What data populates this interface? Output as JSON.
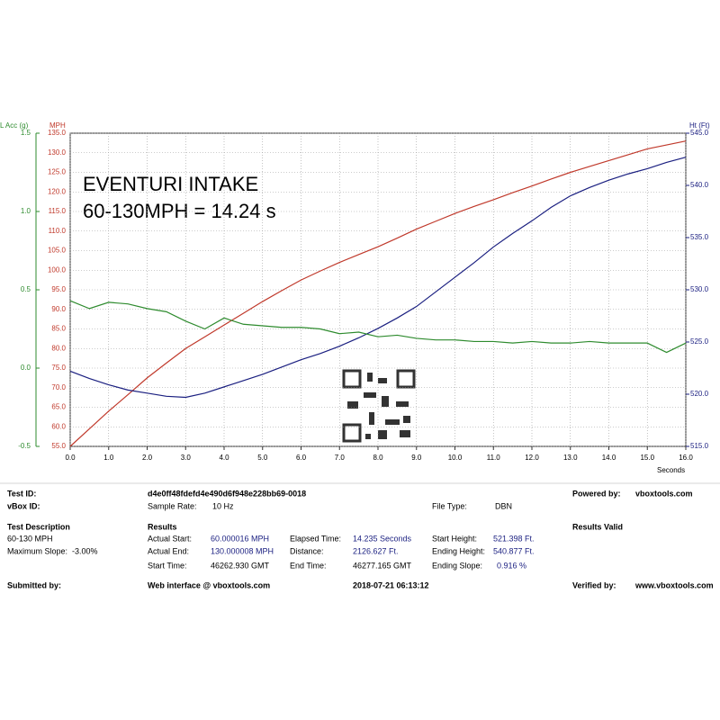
{
  "chart_data": {
    "type": "line",
    "annotations": [
      "EVENTURI INTAKE",
      "60-130MPH = 14.24 s"
    ],
    "xlabel": "Seconds",
    "ylabel": "MPH",
    "y2label": "Ht (Ft)",
    "y3label": "L Acc (g)",
    "x": [
      0,
      0.5,
      1,
      1.5,
      2,
      2.5,
      3,
      3.5,
      4,
      4.5,
      5,
      5.5,
      6,
      6.5,
      7,
      7.5,
      8,
      8.5,
      9,
      9.5,
      10,
      10.5,
      11,
      11.5,
      12,
      12.5,
      13,
      13.5,
      14,
      14.5,
      15,
      15.5,
      16
    ],
    "xlim": [
      0,
      16
    ],
    "xticks": [
      {
        "value": 0,
        "label": "0.0"
      },
      {
        "value": 1,
        "label": "1.0"
      },
      {
        "value": 2,
        "label": "2.0"
      },
      {
        "value": 3,
        "label": "3.0"
      },
      {
        "value": 4,
        "label": "4.0"
      },
      {
        "value": 5,
        "label": "5.0"
      },
      {
        "value": 6,
        "label": "6.0"
      },
      {
        "value": 7,
        "label": "7.0"
      },
      {
        "value": 8,
        "label": "8.0"
      },
      {
        "value": 9,
        "label": "9.0"
      },
      {
        "value": 10,
        "label": "10.0"
      },
      {
        "value": 11,
        "label": "11.0"
      },
      {
        "value": 12,
        "label": "12.0"
      },
      {
        "value": 13,
        "label": "13.0"
      },
      {
        "value": 14,
        "label": "14.0"
      },
      {
        "value": 15,
        "label": "15.0"
      },
      {
        "value": 16,
        "label": "16.0"
      }
    ],
    "ylim": [
      55,
      135
    ],
    "yticks": [
      {
        "value": 55,
        "label": "55.0"
      },
      {
        "value": 60,
        "label": "60.0"
      },
      {
        "value": 65,
        "label": "65.0"
      },
      {
        "value": 70,
        "label": "70.0"
      },
      {
        "value": 75,
        "label": "75.0"
      },
      {
        "value": 80,
        "label": "80.0"
      },
      {
        "value": 85,
        "label": "85.0"
      },
      {
        "value": 90,
        "label": "90.0"
      },
      {
        "value": 95,
        "label": "95.0"
      },
      {
        "value": 100,
        "label": "100.0"
      },
      {
        "value": 105,
        "label": "105.0"
      },
      {
        "value": 110,
        "label": "110.0"
      },
      {
        "value": 115,
        "label": "115.0"
      },
      {
        "value": 120,
        "label": "120.0"
      },
      {
        "value": 125,
        "label": "125.0"
      },
      {
        "value": 130,
        "label": "130.0"
      },
      {
        "value": 135,
        "label": "135.0"
      }
    ],
    "y2lim": [
      515,
      545
    ],
    "y2ticks": [
      {
        "value": 515,
        "label": "515.0"
      },
      {
        "value": 520,
        "label": "520.0"
      },
      {
        "value": 525,
        "label": "525.0"
      },
      {
        "value": 530,
        "label": "530.0"
      },
      {
        "value": 535,
        "label": "535.0"
      },
      {
        "value": 540,
        "label": "540.0"
      },
      {
        "value": 545,
        "label": "545.0"
      }
    ],
    "y3lim": [
      -0.5,
      1.5
    ],
    "y3ticks": [
      -0.5,
      {
        "value": 0,
        "label": "0.0"
      },
      0.5,
      {
        "value": 1,
        "label": "1.0"
      },
      1.5
    ],
    "grid": true,
    "series": [
      {
        "name": "MPH",
        "color": "#c0392b",
        "axis": "y",
        "values": [
          55,
          59.5,
          64,
          68.2,
          72.5,
          76.3,
          80,
          83,
          86,
          89,
          92,
          94.8,
          97.5,
          99.8,
          102,
          104,
          106,
          108.2,
          110.5,
          112.5,
          114.5,
          116.3,
          118,
          119.8,
          121.5,
          123.3,
          125,
          126.5,
          128,
          129.5,
          131,
          132,
          133
        ]
      },
      {
        "name": "Ht (Ft)",
        "color": "#1a1f80",
        "axis": "y2",
        "values": [
          522.2,
          521.5,
          520.9,
          520.4,
          520.1,
          519.8,
          519.7,
          520.1,
          520.7,
          521.3,
          521.9,
          522.6,
          523.3,
          523.9,
          524.6,
          525.4,
          526.3,
          527.3,
          528.4,
          529.8,
          531.2,
          532.6,
          534.1,
          535.4,
          536.6,
          537.9,
          539.0,
          539.8,
          540.5,
          541.1,
          541.6,
          542.2,
          542.7
        ]
      },
      {
        "name": "L Acc (g)",
        "color": "#2e8b2e",
        "axis": "y3",
        "values": [
          0.43,
          0.38,
          0.42,
          0.41,
          0.38,
          0.36,
          0.3,
          0.25,
          0.32,
          0.28,
          0.27,
          0.26,
          0.26,
          0.25,
          0.22,
          0.23,
          0.2,
          0.21,
          0.19,
          0.18,
          0.18,
          0.17,
          0.17,
          0.16,
          0.17,
          0.16,
          0.16,
          0.17,
          0.16,
          0.16,
          0.16,
          0.1,
          0.16
        ]
      }
    ]
  },
  "report": {
    "rows": [
      [
        "Test ID:",
        "d4e0ff48fdefd4e490d6f948e228bb69-0018",
        "Powered by:",
        "vboxtools.com"
      ],
      [
        "vBox ID:",
        "Sample Rate:",
        "10 Hz",
        "File Type:",
        "DBN"
      ],
      [
        "Test Description",
        "Results",
        "Results Valid"
      ],
      [
        "60-130 MPH",
        "Actual Start:",
        "60.000016 MPH",
        "Elapsed Time:",
        "14.235 Seconds",
        "Start Height:",
        "521.398 Ft."
      ],
      [
        "Maximum Slope:",
        "-3.00%",
        "Actual End:",
        "130.000008 MPH",
        "Distance:",
        "2126.627 Ft.",
        "Ending Height:",
        "540.877 Ft."
      ],
      [
        "Start Time:",
        "46262.930 GMT",
        "End Time:",
        "46277.165 GMT",
        "Ending Slope:",
        "0.916 %"
      ],
      [
        "Submitted by:",
        "Web interface @ vboxtools.com",
        "2018-07-21 06:13:12",
        "Verified by:",
        "www.vboxtools.com"
      ]
    ]
  }
}
